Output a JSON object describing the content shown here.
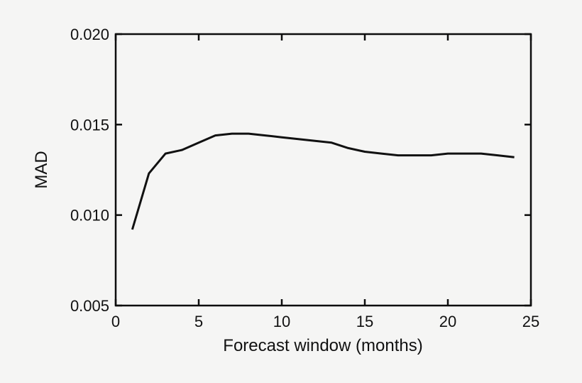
{
  "chart_data": {
    "type": "line",
    "title": "",
    "xlabel": "Forecast window (months)",
    "ylabel": "MAD",
    "x": [
      1,
      2,
      3,
      4,
      5,
      6,
      7,
      8,
      9,
      10,
      11,
      12,
      13,
      14,
      15,
      16,
      17,
      18,
      19,
      20,
      21,
      22,
      23,
      24
    ],
    "values": [
      0.0092,
      0.0123,
      0.0134,
      0.0136,
      0.014,
      0.0144,
      0.0145,
      0.0145,
      0.0144,
      0.0143,
      0.0142,
      0.0141,
      0.014,
      0.0137,
      0.0135,
      0.0134,
      0.0133,
      0.0133,
      0.0133,
      0.0134,
      0.0134,
      0.0134,
      0.0133,
      0.0132
    ],
    "xlim": [
      0,
      25
    ],
    "ylim": [
      0.005,
      0.02
    ],
    "x_ticks": [
      0,
      5,
      10,
      15,
      20,
      25
    ],
    "x_tick_labels": [
      "0",
      "5",
      "10",
      "15",
      "20",
      "25"
    ],
    "y_ticks": [
      0.005,
      0.01,
      0.015,
      0.02
    ],
    "y_tick_labels": [
      "0.005",
      "0.010",
      "0.015",
      "0.020"
    ],
    "grid": false,
    "legend": "none",
    "line_color": "#111111",
    "background_color": "#f5f5f4",
    "tick_style": "inward, mirrored on top and right axes"
  }
}
